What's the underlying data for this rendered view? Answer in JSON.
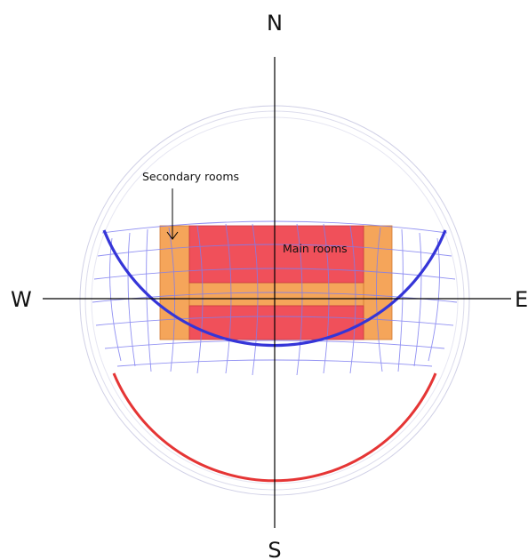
{
  "compass": {
    "north": "N",
    "south": "S",
    "west": "W",
    "east": "E"
  },
  "labels": {
    "secondary_rooms": "Secondary rooms",
    "main_rooms": "Main rooms"
  },
  "colors": {
    "main_rooms_fill": "#f0505a",
    "secondary_rooms_fill": "#f5a55a",
    "sun_path_grid": "#7d7df0",
    "winter_arc": "#e53535",
    "summer_arc": "#3535d8",
    "axis": "#000000"
  }
}
